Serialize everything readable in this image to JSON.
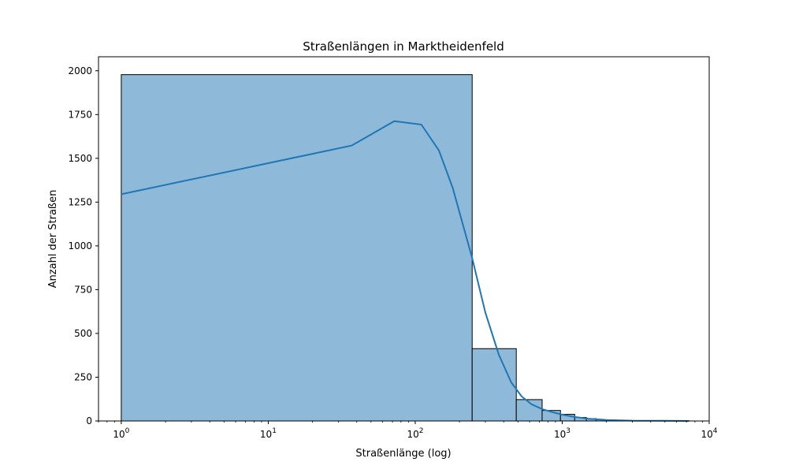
{
  "chart_data": {
    "type": "bar",
    "subtype": "histogram-with-kde",
    "title": "Straßenlängen in Marktheidenfeld",
    "xlabel": "Straßenlänge (log)",
    "ylabel": "Anzahl der Straßen",
    "x_scale": "log",
    "xlim": [
      0.7,
      10000
    ],
    "ylim": [
      0,
      2080
    ],
    "grid": false,
    "y_ticks": [
      0,
      250,
      500,
      750,
      1000,
      1250,
      1500,
      1750,
      2000
    ],
    "x_ticks": [
      {
        "value": 1,
        "base": "10",
        "exp": "0"
      },
      {
        "value": 10,
        "base": "10",
        "exp": "1"
      },
      {
        "value": 100,
        "base": "10",
        "exp": "2"
      },
      {
        "value": 1000,
        "base": "10",
        "exp": "3"
      },
      {
        "value": 10000,
        "base": "10",
        "exp": "4"
      }
    ],
    "bins": [
      {
        "x0": 1,
        "x1": 244,
        "count": 1978
      },
      {
        "x0": 244,
        "x1": 487,
        "count": 413
      },
      {
        "x0": 487,
        "x1": 730,
        "count": 122
      },
      {
        "x0": 730,
        "x1": 973,
        "count": 60
      },
      {
        "x0": 973,
        "x1": 1216,
        "count": 38
      },
      {
        "x0": 1216,
        "x1": 1459,
        "count": 20
      },
      {
        "x0": 1459,
        "x1": 1702,
        "count": 13
      },
      {
        "x0": 1702,
        "x1": 1945,
        "count": 8
      },
      {
        "x0": 1945,
        "x1": 2188,
        "count": 6
      },
      {
        "x0": 2188,
        "x1": 2431,
        "count": 4
      },
      {
        "x0": 2431,
        "x1": 2674,
        "count": 3
      },
      {
        "x0": 2674,
        "x1": 2917,
        "count": 3
      },
      {
        "x0": 2917,
        "x1": 3160,
        "count": 2
      },
      {
        "x0": 3160,
        "x1": 3403,
        "count": 2
      },
      {
        "x0": 3403,
        "x1": 3646,
        "count": 1
      },
      {
        "x0": 3646,
        "x1": 3889,
        "count": 1
      },
      {
        "x0": 3889,
        "x1": 4132,
        "count": 1
      },
      {
        "x0": 4132,
        "x1": 4375,
        "count": 1
      },
      {
        "x0": 4375,
        "x1": 4618,
        "count": 1
      },
      {
        "x0": 4618,
        "x1": 4861,
        "count": 1
      },
      {
        "x0": 4861,
        "x1": 5104,
        "count": 1
      },
      {
        "x0": 5104,
        "x1": 5347,
        "count": 1
      },
      {
        "x0": 5347,
        "x1": 5590,
        "count": 1
      },
      {
        "x0": 5590,
        "x1": 5833,
        "count": 1
      },
      {
        "x0": 5833,
        "x1": 6076,
        "count": 1
      },
      {
        "x0": 6076,
        "x1": 6319,
        "count": 1
      },
      {
        "x0": 6319,
        "x1": 6562,
        "count": 1
      },
      {
        "x0": 6562,
        "x1": 6805,
        "count": 1
      },
      {
        "x0": 6805,
        "x1": 7048,
        "count": 1
      },
      {
        "x0": 7048,
        "x1": 7291,
        "count": 1
      }
    ],
    "kde": [
      {
        "x": 1,
        "y": 1295
      },
      {
        "x": 37,
        "y": 1573
      },
      {
        "x": 72,
        "y": 1712
      },
      {
        "x": 110,
        "y": 1693
      },
      {
        "x": 145,
        "y": 1545
      },
      {
        "x": 180,
        "y": 1330
      },
      {
        "x": 244,
        "y": 930
      },
      {
        "x": 300,
        "y": 620
      },
      {
        "x": 370,
        "y": 380
      },
      {
        "x": 450,
        "y": 220
      },
      {
        "x": 530,
        "y": 140
      },
      {
        "x": 620,
        "y": 95
      },
      {
        "x": 730,
        "y": 68
      },
      {
        "x": 860,
        "y": 50
      },
      {
        "x": 1000,
        "y": 36
      },
      {
        "x": 1200,
        "y": 24
      },
      {
        "x": 1500,
        "y": 13
      },
      {
        "x": 2000,
        "y": 6
      },
      {
        "x": 3000,
        "y": 2
      },
      {
        "x": 5000,
        "y": 1
      },
      {
        "x": 7291,
        "y": 0
      }
    ],
    "colors": {
      "bar_fill": "#8fb9d9",
      "bar_edge": "#000000",
      "kde_line": "#1f77b4",
      "axis": "#000000"
    }
  }
}
